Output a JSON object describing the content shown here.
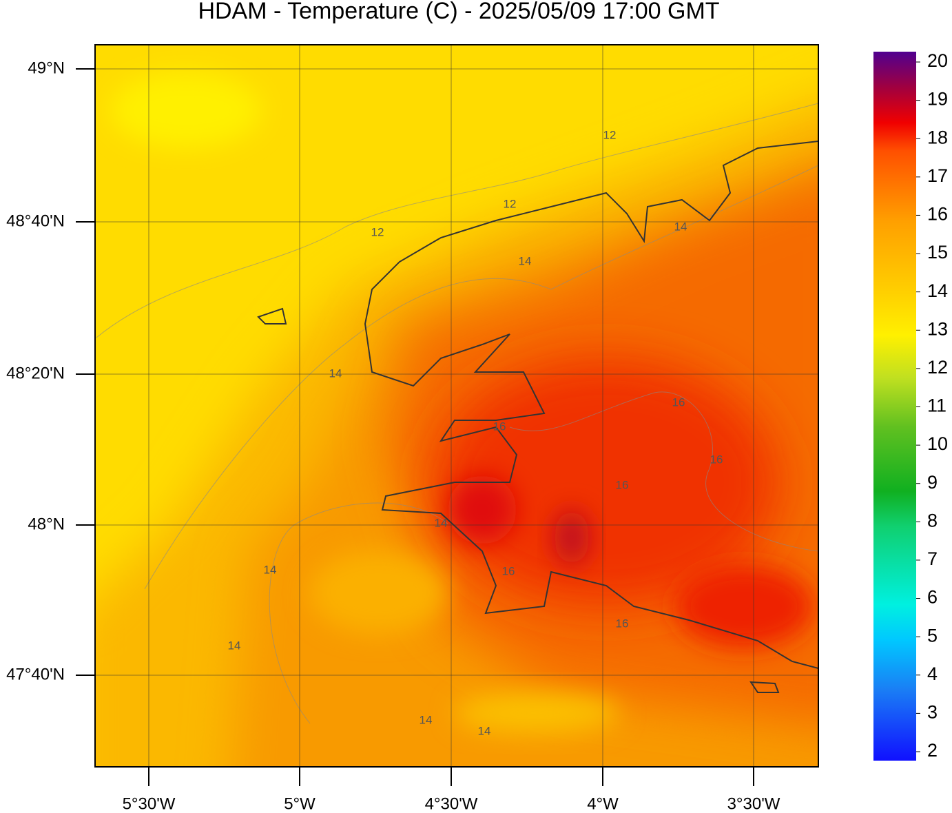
{
  "title": "HDAM - Temperature (C)  -  2025/05/09  17:00 GMT",
  "lat_labels": [
    "49°N",
    "48°40'N",
    "48°20'N",
    "48°N",
    "47°40'N"
  ],
  "lon_labels": [
    "5°30'W",
    "5°W",
    "4°30'W",
    "4°W",
    "3°30'W"
  ],
  "colorbar": {
    "ticks": [
      2,
      3,
      4,
      5,
      6,
      7,
      8,
      9,
      10,
      11,
      12,
      13,
      14,
      15,
      16,
      17,
      18,
      19,
      20
    ]
  },
  "contour_labels": [
    "12",
    "12",
    "12",
    "14",
    "14",
    "14",
    "16",
    "16",
    "16",
    "16",
    "14",
    "14",
    "14",
    "14",
    "16",
    "14",
    "16"
  ]
}
